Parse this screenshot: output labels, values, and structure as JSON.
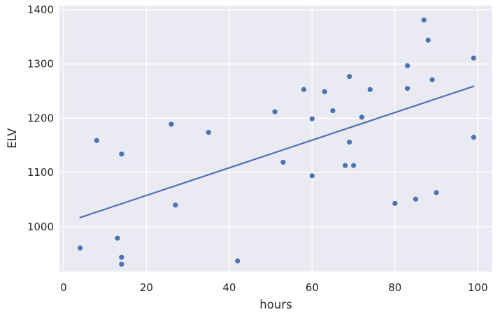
{
  "chart_data": {
    "type": "scatter",
    "title": "",
    "xlabel": "hours",
    "ylabel": "ELV",
    "points": [
      [
        4,
        961
      ],
      [
        8,
        1159
      ],
      [
        13,
        979
      ],
      [
        14,
        1134
      ],
      [
        14,
        944
      ],
      [
        14,
        931
      ],
      [
        26,
        1189
      ],
      [
        27,
        1040
      ],
      [
        35,
        1174
      ],
      [
        42,
        937
      ],
      [
        51,
        1212
      ],
      [
        53,
        1119
      ],
      [
        58,
        1253
      ],
      [
        60,
        1199
      ],
      [
        60,
        1094
      ],
      [
        63,
        1249
      ],
      [
        65,
        1214
      ],
      [
        68,
        1113
      ],
      [
        69,
        1277
      ],
      [
        69,
        1156
      ],
      [
        70,
        1113
      ],
      [
        72,
        1202
      ],
      [
        74,
        1253
      ],
      [
        80,
        1043
      ],
      [
        83,
        1297
      ],
      [
        83,
        1255
      ],
      [
        85,
        1051
      ],
      [
        87,
        1381
      ],
      [
        88,
        1344
      ],
      [
        89,
        1271
      ],
      [
        90,
        1063
      ],
      [
        99,
        1311
      ],
      [
        99,
        1165
      ]
    ],
    "regression_line": {
      "x1": 4,
      "y1": 1017,
      "x2": 99,
      "y2": 1259
    },
    "xticks": [
      "0",
      "20",
      "40",
      "60",
      "80",
      "100"
    ],
    "xtick_values": [
      0,
      20,
      40,
      60,
      80,
      100
    ],
    "yticks": [
      "1000",
      "1100",
      "1200",
      "1300",
      "1400"
    ],
    "ytick_values": [
      1000,
      1100,
      1200,
      1300,
      1400
    ],
    "xlim": [
      -1.0,
      103.5
    ],
    "ylim": [
      917.5,
      1407.7
    ],
    "grid": true,
    "legend": "none",
    "colors": {
      "plot_background": "#EAEAF2",
      "grid": "#FFFFFF",
      "points": "#4C72B0",
      "line": "#4C72B0",
      "text": "#262626",
      "figure_background": "#FFFFFF"
    }
  }
}
